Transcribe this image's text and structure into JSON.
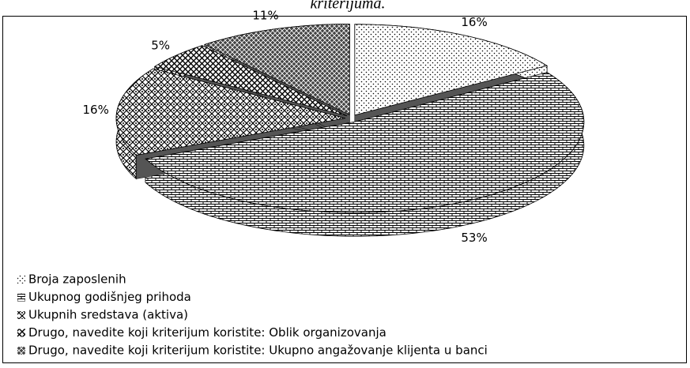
{
  "chart_data": {
    "type": "pie",
    "title": "kriterijuma.",
    "categories": [
      "Broja zaposlenih",
      "Ukupnog godišnjeg prihoda",
      "Ukupnih sredstava (aktiva)",
      "Drugo, navedite koji kriterijum koristite: Oblik organizovanja",
      "Drugo, navedite koji kriterijum koristite: Ukupno angažovanje klijenta u banci"
    ],
    "values": [
      16,
      53,
      16,
      5,
      11
    ],
    "value_labels": [
      "16%",
      "53%",
      "16%",
      "5%",
      "11%"
    ]
  }
}
